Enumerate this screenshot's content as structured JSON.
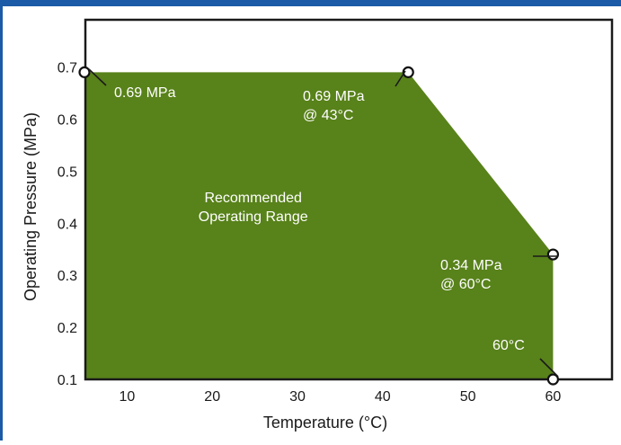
{
  "colors": {
    "frame_accent": "#1b5aa6",
    "area_fill": "#58821a",
    "axis": "#1a1a1a",
    "marker_fill": "#ffffff",
    "inner_text": "#ffffff"
  },
  "chart_data": {
    "type": "area",
    "title": "",
    "xlabel": "Temperature (°C)",
    "ylabel": "Operating Pressure (MPa)",
    "xlim": [
      5,
      68
    ],
    "ylim": [
      0.1,
      0.75
    ],
    "x_ticks": [
      10,
      20,
      30,
      40,
      50,
      60
    ],
    "y_ticks": [
      0.1,
      0.2,
      0.3,
      0.4,
      0.5,
      0.6,
      0.7
    ],
    "x_tick_labels": [
      "10",
      "20",
      "30",
      "40",
      "50",
      "60"
    ],
    "y_tick_labels": [
      "0.1",
      "0.2",
      "0.3",
      "0.4",
      "0.5",
      "0.6",
      "0.7"
    ],
    "grid": false,
    "region": {
      "label_lines": [
        "Recommended",
        "Operating Range"
      ],
      "boundary": [
        {
          "x": 5,
          "y": 0.69
        },
        {
          "x": 43,
          "y": 0.69
        },
        {
          "x": 60,
          "y": 0.34
        },
        {
          "x": 60,
          "y": 0.1
        }
      ]
    },
    "points": [
      {
        "x": 5,
        "y": 0.69,
        "label_lines": [
          "0.69 MPa"
        ]
      },
      {
        "x": 43,
        "y": 0.69,
        "label_lines": [
          "0.69 MPa",
          "@ 43°C"
        ]
      },
      {
        "x": 60,
        "y": 0.34,
        "label_lines": [
          "0.34 MPa",
          "@ 60°C"
        ]
      },
      {
        "x": 60,
        "y": 0.1,
        "label_lines": [
          "60°C"
        ]
      }
    ]
  }
}
